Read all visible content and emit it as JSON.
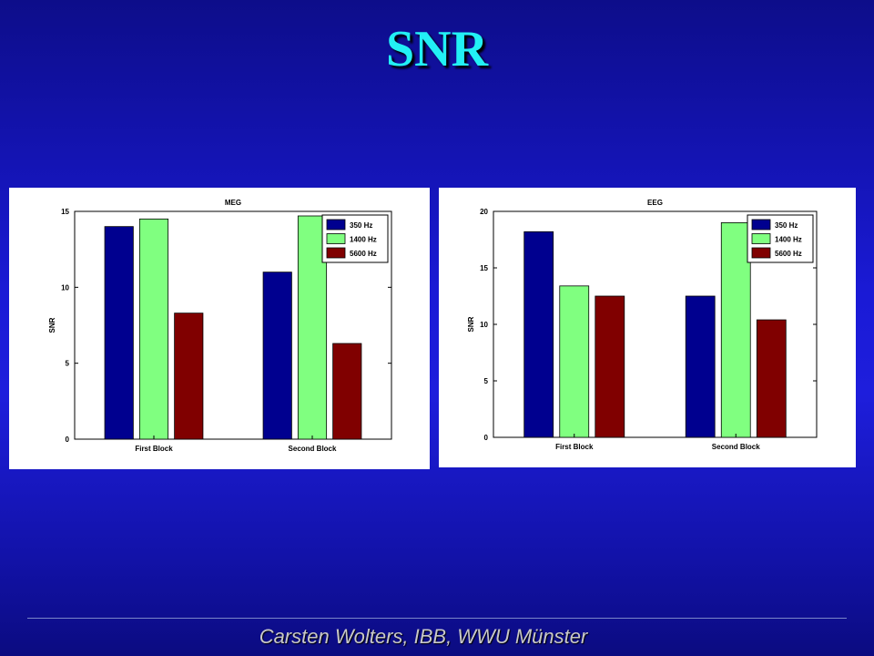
{
  "slide": {
    "title": "SNR",
    "title_color": "#22f0f5",
    "footer": "Carsten Wolters, IBB, WWU Münster",
    "footer_color": "#c8c8c8"
  },
  "chart_data": [
    {
      "type": "bar",
      "title": "MEG",
      "xlabel": "",
      "ylabel": "SNR",
      "categories": [
        "First Block",
        "Second Block"
      ],
      "ylim": [
        0,
        15
      ],
      "yticks": [
        0,
        5,
        10,
        15
      ],
      "grid": false,
      "legend_position": "top-right",
      "series": [
        {
          "name": "350 Hz",
          "color": "#00008f",
          "values": [
            14.0,
            11.0
          ]
        },
        {
          "name": "1400 Hz",
          "color": "#80ff80",
          "values": [
            14.5,
            14.7
          ]
        },
        {
          "name": "5600 Hz",
          "color": "#800000",
          "values": [
            8.3,
            6.3
          ]
        }
      ]
    },
    {
      "type": "bar",
      "title": "EEG",
      "xlabel": "",
      "ylabel": "SNR",
      "categories": [
        "First Block",
        "Second Block"
      ],
      "ylim": [
        0,
        20
      ],
      "yticks": [
        0,
        5,
        10,
        15,
        20
      ],
      "grid": false,
      "legend_position": "top-right",
      "series": [
        {
          "name": "350 Hz",
          "color": "#00008f",
          "values": [
            18.2,
            12.5
          ]
        },
        {
          "name": "1400 Hz",
          "color": "#80ff80",
          "values": [
            13.4,
            19.0
          ]
        },
        {
          "name": "5600 Hz",
          "color": "#800000",
          "values": [
            12.5,
            10.4
          ]
        }
      ]
    }
  ]
}
